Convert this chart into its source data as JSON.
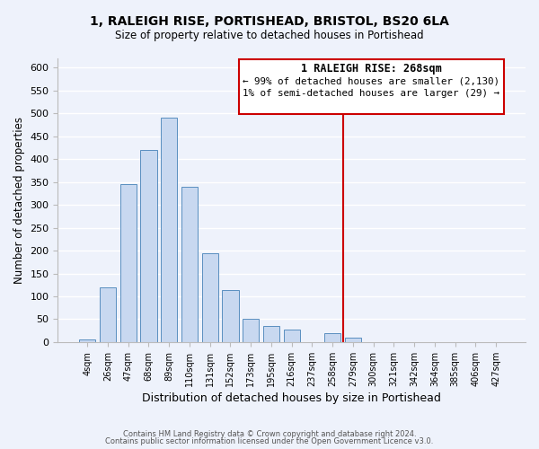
{
  "title": "1, RALEIGH RISE, PORTISHEAD, BRISTOL, BS20 6LA",
  "subtitle": "Size of property relative to detached houses in Portishead",
  "xlabel": "Distribution of detached houses by size in Portishead",
  "ylabel": "Number of detached properties",
  "bar_labels": [
    "4sqm",
    "26sqm",
    "47sqm",
    "68sqm",
    "89sqm",
    "110sqm",
    "131sqm",
    "152sqm",
    "173sqm",
    "195sqm",
    "216sqm",
    "237sqm",
    "258sqm",
    "279sqm",
    "300sqm",
    "321sqm",
    "342sqm",
    "364sqm",
    "385sqm",
    "406sqm",
    "427sqm"
  ],
  "bar_heights": [
    5,
    120,
    345,
    420,
    490,
    340,
    195,
    113,
    50,
    35,
    28,
    0,
    20,
    10,
    0,
    0,
    0,
    0,
    0,
    0,
    0
  ],
  "bar_color": "#c8d8f0",
  "bar_edge_color": "#5a8fc0",
  "vline_color": "#cc0000",
  "ylim": [
    0,
    620
  ],
  "yticks": [
    0,
    50,
    100,
    150,
    200,
    250,
    300,
    350,
    400,
    450,
    500,
    550,
    600
  ],
  "annotation_title": "1 RALEIGH RISE: 268sqm",
  "annotation_line1": "← 99% of detached houses are smaller (2,130)",
  "annotation_line2": "1% of semi-detached houses are larger (29) →",
  "footer1": "Contains HM Land Registry data © Crown copyright and database right 2024.",
  "footer2": "Contains public sector information licensed under the Open Government Licence v3.0.",
  "background_color": "#eef2fb",
  "grid_color": "#ffffff"
}
